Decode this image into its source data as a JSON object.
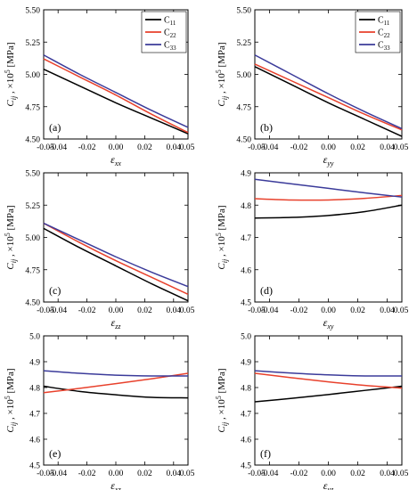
{
  "chart_data": [
    {
      "type": "line",
      "panel_label": "(a)",
      "xlabel_main": "ε",
      "xlabel_sub": "xx",
      "ylabel": "C_ij , ×10^5 [MPa]",
      "xlim": [
        -0.05,
        0.05
      ],
      "ylim": [
        4.5,
        5.5
      ],
      "xticks": [
        "-0.05",
        "-0.04",
        "-0.02",
        "0.00",
        "0.02",
        "0.04",
        "0.05"
      ],
      "yticks": [
        "4.50",
        "4.75",
        "5.00",
        "5.25",
        "5.50"
      ],
      "x": [
        -0.05,
        -0.025,
        0.0,
        0.025,
        0.05
      ],
      "series": [
        {
          "name": "C11",
          "color": "#000000",
          "values": [
            5.04,
            4.91,
            4.78,
            4.66,
            4.54
          ]
        },
        {
          "name": "C22",
          "color": "#e8412c",
          "values": [
            5.12,
            4.98,
            4.84,
            4.69,
            4.55
          ]
        },
        {
          "name": "C33",
          "color": "#3b3b9a",
          "values": [
            5.15,
            5.0,
            4.86,
            4.72,
            4.59
          ]
        }
      ],
      "legend": {
        "position": "top-right",
        "entries": [
          {
            "main": "C",
            "sub": "11",
            "color": "#000000"
          },
          {
            "main": "C",
            "sub": "22",
            "color": "#e8412c"
          },
          {
            "main": "C",
            "sub": "33",
            "color": "#3b3b9a"
          }
        ]
      }
    },
    {
      "type": "line",
      "panel_label": "(b)",
      "xlabel_main": "ε",
      "xlabel_sub": "yy",
      "ylabel": "C_ij , ×10^5 [MPa]",
      "xlim": [
        -0.05,
        0.05
      ],
      "ylim": [
        4.5,
        5.5
      ],
      "xticks": [
        "-0.05",
        "-0.04",
        "-0.02",
        "0.00",
        "0.02",
        "0.04",
        "0.05"
      ],
      "yticks": [
        "4.50",
        "4.75",
        "5.00",
        "5.25",
        "5.50"
      ],
      "x": [
        -0.05,
        -0.025,
        0.0,
        0.025,
        0.05
      ],
      "series": [
        {
          "name": "C11",
          "color": "#000000",
          "values": [
            5.06,
            4.92,
            4.78,
            4.65,
            4.52
          ]
        },
        {
          "name": "C22",
          "color": "#e8412c",
          "values": [
            5.08,
            4.95,
            4.82,
            4.69,
            4.57
          ]
        },
        {
          "name": "C33",
          "color": "#3b3b9a",
          "values": [
            5.15,
            5.0,
            4.85,
            4.71,
            4.58
          ]
        }
      ],
      "legend": {
        "position": "top-right",
        "entries": [
          {
            "main": "C",
            "sub": "11",
            "color": "#000000"
          },
          {
            "main": "C",
            "sub": "22",
            "color": "#e8412c"
          },
          {
            "main": "C",
            "sub": "33",
            "color": "#3b3b9a"
          }
        ]
      }
    },
    {
      "type": "line",
      "panel_label": "(c)",
      "xlabel_main": "ε",
      "xlabel_sub": "zz",
      "ylabel": "C_ij , ×10^5 [MPa]",
      "xlim": [
        -0.05,
        0.05
      ],
      "ylim": [
        4.5,
        5.5
      ],
      "xticks": [
        "-0.05",
        "-0.04",
        "-0.02",
        "0.00",
        "0.02",
        "0.04",
        "0.05"
      ],
      "yticks": [
        "4.50",
        "4.75",
        "5.00",
        "5.25",
        "5.50"
      ],
      "x": [
        -0.05,
        -0.025,
        0.0,
        0.025,
        0.05
      ],
      "series": [
        {
          "name": "C11",
          "color": "#000000",
          "values": [
            5.07,
            4.92,
            4.78,
            4.64,
            4.51
          ]
        },
        {
          "name": "C22",
          "color": "#e8412c",
          "values": [
            5.11,
            4.96,
            4.82,
            4.69,
            4.56
          ]
        },
        {
          "name": "C33",
          "color": "#3b3b9a",
          "values": [
            5.11,
            4.98,
            4.85,
            4.73,
            4.62
          ]
        }
      ]
    },
    {
      "type": "line",
      "panel_label": "(d)",
      "xlabel_main": "ε",
      "xlabel_sub": "xy",
      "ylabel": "C_ij , ×10^5 [MPa]",
      "xlim": [
        -0.05,
        0.05
      ],
      "ylim": [
        4.5,
        4.9
      ],
      "xticks": [
        "-0.05",
        "-0.04",
        "-0.02",
        "0.00",
        "0.02",
        "0.04",
        "0.05"
      ],
      "yticks": [
        "4.5",
        "4.6",
        "4.7",
        "4.8",
        "4.9"
      ],
      "x": [
        -0.05,
        -0.025,
        0.0,
        0.025,
        0.05
      ],
      "series": [
        {
          "name": "C11",
          "color": "#000000",
          "values": [
            4.76,
            4.762,
            4.768,
            4.78,
            4.8
          ]
        },
        {
          "name": "C22",
          "color": "#e8412c",
          "values": [
            4.82,
            4.816,
            4.816,
            4.821,
            4.83
          ]
        },
        {
          "name": "C33",
          "color": "#3b3b9a",
          "values": [
            4.88,
            4.866,
            4.852,
            4.838,
            4.825
          ]
        }
      ]
    },
    {
      "type": "line",
      "panel_label": "(e)",
      "xlabel_main": "ε",
      "xlabel_sub": "xz",
      "ylabel": "C_ij , ×10^5 [MPa]",
      "xlim": [
        -0.05,
        0.05
      ],
      "ylim": [
        4.5,
        5.0
      ],
      "xticks": [
        "-0.05",
        "-0.04",
        "-0.02",
        "0.00",
        "0.02",
        "0.04",
        "0.05"
      ],
      "yticks": [
        "4.5",
        "4.6",
        "4.7",
        "4.8",
        "4.9",
        "5.0"
      ],
      "x": [
        -0.05,
        -0.025,
        0.0,
        0.025,
        0.05
      ],
      "series": [
        {
          "name": "C11",
          "color": "#000000",
          "values": [
            4.805,
            4.785,
            4.772,
            4.762,
            4.76
          ]
        },
        {
          "name": "C22",
          "color": "#e8412c",
          "values": [
            4.78,
            4.797,
            4.815,
            4.834,
            4.855
          ]
        },
        {
          "name": "C33",
          "color": "#3b3b9a",
          "values": [
            4.865,
            4.855,
            4.848,
            4.845,
            4.845
          ]
        }
      ]
    },
    {
      "type": "line",
      "panel_label": "(f)",
      "xlabel_main": "ε",
      "xlabel_sub": "yz",
      "ylabel": "C_ij , ×10^5 [MPa]",
      "xlim": [
        -0.05,
        0.05
      ],
      "ylim": [
        4.5,
        5.0
      ],
      "xticks": [
        "-0.05",
        "-0.04",
        "-0.02",
        "0.00",
        "0.02",
        "0.04",
        "0.05"
      ],
      "yticks": [
        "4.5",
        "4.6",
        "4.7",
        "4.8",
        "4.9",
        "5.0"
      ],
      "x": [
        -0.05,
        -0.025,
        0.0,
        0.025,
        0.05
      ],
      "series": [
        {
          "name": "C11",
          "color": "#000000",
          "values": [
            4.745,
            4.758,
            4.773,
            4.789,
            4.805
          ]
        },
        {
          "name": "C22",
          "color": "#e8412c",
          "values": [
            4.855,
            4.838,
            4.822,
            4.808,
            4.798
          ]
        },
        {
          "name": "C33",
          "color": "#3b3b9a",
          "values": [
            4.865,
            4.856,
            4.849,
            4.845,
            4.845
          ]
        }
      ]
    }
  ]
}
